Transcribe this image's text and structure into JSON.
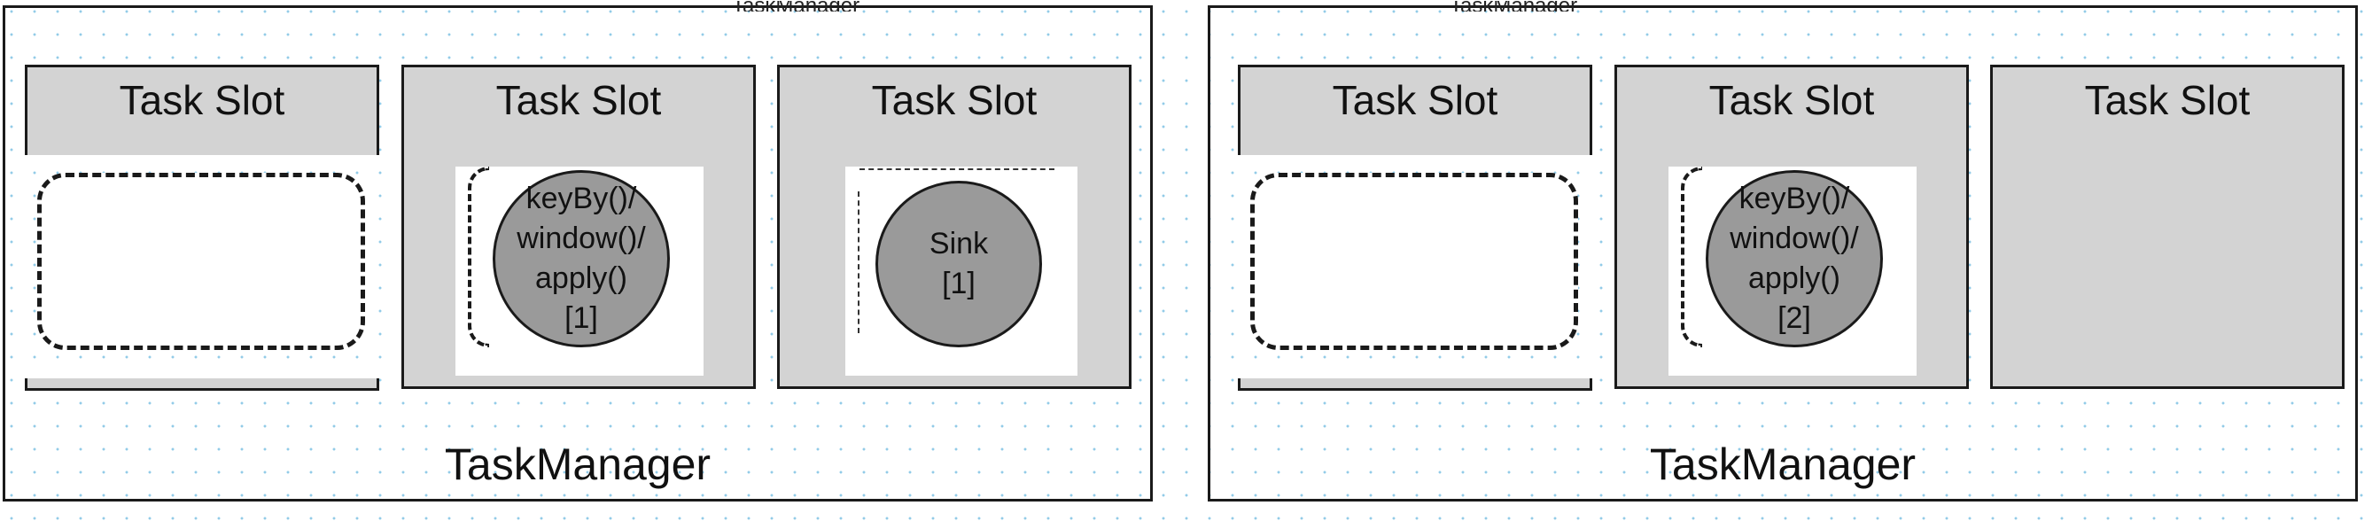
{
  "task_managers": [
    {
      "label": "TaskManager",
      "slots": [
        {
          "title": "Task Slot",
          "operator": ""
        },
        {
          "title": "Task Slot",
          "operator": "keyBy()/\nwindow()/\napply()\n[1]"
        },
        {
          "title": "Task Slot",
          "operator": "Sink\n[1]"
        }
      ]
    },
    {
      "label": "TaskManager",
      "slots": [
        {
          "title": "Task Slot",
          "operator": ""
        },
        {
          "title": "Task Slot",
          "operator": "keyBy()/\nwindow()/\napply()\n[2]"
        },
        {
          "title": "Task Slot",
          "operator": ""
        }
      ]
    }
  ],
  "colors": {
    "slot_fill": "#d3d3d3",
    "operator_fill": "#9a9a9a",
    "border": "#1a1a1a",
    "grid_dots": "#4aa8d8"
  }
}
